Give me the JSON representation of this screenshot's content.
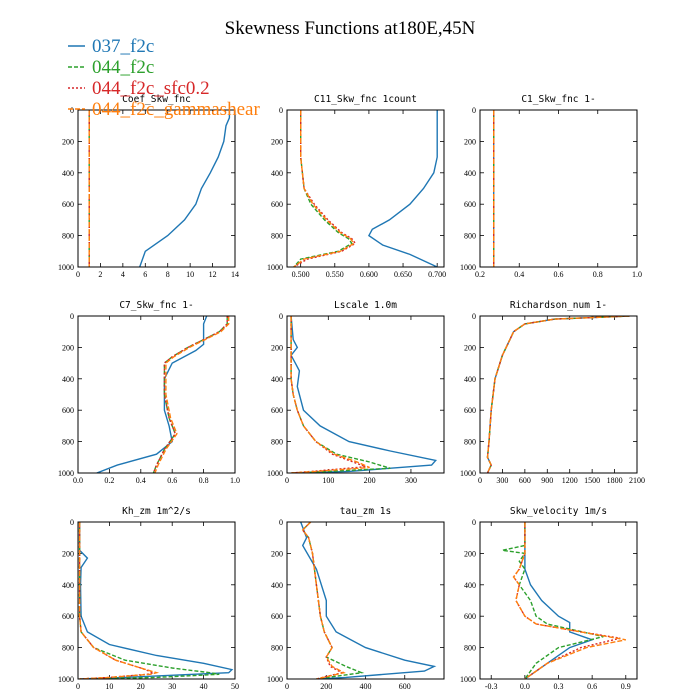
{
  "title": "Skewness Functions at180E,45N",
  "legend": [
    {
      "name": "037_f2c",
      "color": "#1f77b4"
    },
    {
      "name": "044_f2c",
      "color": "#2ca02c"
    },
    {
      "name": "044_f2c_sfc0.2",
      "color": "#d62728"
    },
    {
      "name": "044_f2c_gammashear",
      "color": "#ff7f0e"
    }
  ],
  "chart_data": [
    {
      "type": "line",
      "title": "Coef_Skw_fnc",
      "xlim": [
        0,
        14
      ],
      "ylim": [
        1000,
        0
      ],
      "xticks": [
        0,
        2,
        4,
        6,
        8,
        10,
        12,
        14
      ],
      "yticks": [
        0,
        200,
        400,
        600,
        800,
        1000
      ],
      "series": [
        {
          "x": [
            13.5,
            13.5,
            13.2,
            13.0,
            12.5,
            11.8,
            11.0,
            10.5,
            9.5,
            8.0,
            6.0,
            5.5
          ],
          "y": [
            0,
            50,
            100,
            200,
            300,
            400,
            500,
            600,
            700,
            800,
            900,
            1000
          ]
        },
        {
          "x": [
            1.0,
            1.0
          ],
          "y": [
            0,
            1000
          ]
        },
        {
          "x": [
            1.0,
            1.0
          ],
          "y": [
            0,
            1000
          ]
        },
        {
          "x": [
            1.0,
            1.0
          ],
          "y": [
            0,
            1000
          ]
        }
      ]
    },
    {
      "type": "line",
      "title": "C11_Skw_fnc   1count",
      "xlim": [
        0.48,
        0.71
      ],
      "ylim": [
        1000,
        0
      ],
      "xticks": [
        0.5,
        0.55,
        0.6,
        0.65,
        0.7
      ],
      "xticklabels": [
        "0.500",
        "0.550",
        "0.600",
        "0.650",
        "0.700"
      ],
      "yticks": [
        0,
        200,
        400,
        600,
        800,
        1000
      ],
      "series": [
        {
          "x": [
            0.7,
            0.7,
            0.7,
            0.695,
            0.68,
            0.66,
            0.63,
            0.605,
            0.6,
            0.62,
            0.66,
            0.7
          ],
          "y": [
            0,
            100,
            300,
            400,
            500,
            600,
            700,
            760,
            800,
            860,
            920,
            1000
          ]
        },
        {
          "x": [
            0.5,
            0.5,
            0.5,
            0.505,
            0.515,
            0.535,
            0.555,
            0.57,
            0.575,
            0.555,
            0.5,
            0.49
          ],
          "y": [
            0,
            100,
            300,
            500,
            600,
            700,
            780,
            820,
            850,
            900,
            950,
            1000
          ]
        },
        {
          "x": [
            0.5,
            0.5,
            0.5,
            0.505,
            0.52,
            0.54,
            0.56,
            0.575,
            0.58,
            0.56,
            0.51,
            0.49
          ],
          "y": [
            0,
            100,
            300,
            500,
            600,
            700,
            780,
            820,
            850,
            900,
            950,
            1000
          ]
        },
        {
          "x": [
            0.5,
            0.5,
            0.5,
            0.505,
            0.518,
            0.538,
            0.558,
            0.573,
            0.578,
            0.558,
            0.505,
            0.49
          ],
          "y": [
            0,
            100,
            300,
            500,
            600,
            700,
            780,
            820,
            850,
            900,
            950,
            1000
          ]
        }
      ]
    },
    {
      "type": "line",
      "title": "C1_Skw_fnc   1-",
      "xlim": [
        0.2,
        1.0
      ],
      "ylim": [
        1000,
        0
      ],
      "xticks": [
        0.2,
        0.4,
        0.6,
        0.8,
        1.0
      ],
      "xticklabels": [
        "0.2",
        "0.4",
        "0.6",
        "0.8",
        "1.0"
      ],
      "yticks": [
        0,
        200,
        400,
        600,
        800,
        1000
      ],
      "series": [
        {
          "x": [
            0.27,
            0.27
          ],
          "y": [
            0,
            1000
          ]
        },
        {
          "x": [
            0.27,
            0.27
          ],
          "y": [
            0,
            1000
          ]
        },
        {
          "x": [
            0.27,
            0.27
          ],
          "y": [
            0,
            1000
          ]
        },
        {
          "x": [
            0.27,
            0.27
          ],
          "y": [
            0,
            1000
          ]
        }
      ]
    },
    {
      "type": "line",
      "title": "C7_Skw_fnc   1-",
      "xlim": [
        0.0,
        1.0
      ],
      "ylim": [
        1000,
        0
      ],
      "xticks": [
        0.0,
        0.2,
        0.4,
        0.6,
        0.8,
        1.0
      ],
      "xticklabels": [
        "0.0",
        "0.2",
        "0.4",
        "0.6",
        "0.8",
        "1.0"
      ],
      "yticks": [
        0,
        200,
        400,
        600,
        800,
        1000
      ],
      "series": [
        {
          "x": [
            0.82,
            0.8,
            0.8,
            0.8,
            0.75,
            0.6,
            0.55,
            0.55,
            0.58,
            0.6,
            0.5,
            0.25,
            0.12
          ],
          "y": [
            0,
            50,
            150,
            180,
            220,
            300,
            400,
            600,
            700,
            800,
            880,
            950,
            1000
          ]
        },
        {
          "x": [
            0.95,
            0.95,
            0.9,
            0.8,
            0.7,
            0.6,
            0.55,
            0.55,
            0.58,
            0.62,
            0.55,
            0.5,
            0.48
          ],
          "y": [
            0,
            50,
            100,
            150,
            200,
            260,
            300,
            500,
            650,
            750,
            850,
            950,
            1000
          ]
        },
        {
          "x": [
            0.95,
            0.95,
            0.9,
            0.8,
            0.7,
            0.6,
            0.55,
            0.55,
            0.58,
            0.62,
            0.55,
            0.5,
            0.48
          ],
          "y": [
            0,
            50,
            100,
            150,
            200,
            260,
            300,
            500,
            650,
            750,
            850,
            950,
            1000
          ]
        },
        {
          "x": [
            0.96,
            0.96,
            0.91,
            0.81,
            0.71,
            0.61,
            0.56,
            0.56,
            0.59,
            0.63,
            0.56,
            0.51,
            0.49
          ],
          "y": [
            0,
            50,
            100,
            150,
            200,
            260,
            300,
            500,
            650,
            750,
            850,
            950,
            1000
          ]
        }
      ]
    },
    {
      "type": "line",
      "title": "Lscale   1.0m",
      "xlim": [
        0,
        380
      ],
      "ylim": [
        1000,
        0
      ],
      "xticks": [
        0,
        100,
        200,
        300
      ],
      "yticks": [
        0,
        200,
        400,
        600,
        800,
        1000
      ],
      "series": [
        {
          "x": [
            10,
            15,
            25,
            10,
            20,
            30,
            25,
            40,
            80,
            150,
            250,
            360,
            350,
            150,
            20
          ],
          "y": [
            0,
            150,
            200,
            250,
            300,
            350,
            450,
            600,
            700,
            800,
            860,
            920,
            950,
            990,
            1000
          ]
        },
        {
          "x": [
            10,
            10,
            10,
            15,
            25,
            40,
            70,
            120,
            200,
            250,
            100,
            10
          ],
          "y": [
            0,
            200,
            400,
            500,
            600,
            700,
            800,
            880,
            930,
            970,
            990,
            1000
          ]
        },
        {
          "x": [
            10,
            10,
            10,
            15,
            25,
            40,
            70,
            110,
            160,
            190,
            60,
            10
          ],
          "y": [
            0,
            200,
            400,
            500,
            600,
            700,
            800,
            880,
            930,
            960,
            990,
            1000
          ]
        },
        {
          "x": [
            10,
            10,
            10,
            15,
            25,
            40,
            70,
            115,
            170,
            200,
            70,
            10
          ],
          "y": [
            0,
            200,
            400,
            500,
            600,
            700,
            800,
            880,
            930,
            965,
            990,
            1000
          ]
        }
      ]
    },
    {
      "type": "line",
      "title": "Richardson_num   1-",
      "xlim": [
        0,
        2100
      ],
      "ylim": [
        1000,
        0
      ],
      "xticks": [
        0,
        300,
        600,
        900,
        1200,
        1500,
        1800,
        2100
      ],
      "yticks": [
        0,
        200,
        400,
        600,
        800,
        1000
      ],
      "series": [
        {
          "x": [
            2000,
            1000,
            600,
            450,
            400,
            300,
            200,
            150,
            120,
            100,
            150,
            100
          ],
          "y": [
            0,
            20,
            50,
            100,
            150,
            250,
            400,
            600,
            800,
            900,
            950,
            1000
          ]
        },
        {
          "x": [
            2000,
            1000,
            600,
            450,
            400,
            300,
            200,
            150,
            120,
            100,
            150,
            100
          ],
          "y": [
            0,
            20,
            50,
            100,
            150,
            250,
            400,
            600,
            800,
            900,
            950,
            1000
          ]
        },
        {
          "x": [
            2000,
            1000,
            600,
            450,
            400,
            300,
            200,
            150,
            120,
            100,
            150,
            100
          ],
          "y": [
            0,
            20,
            50,
            100,
            150,
            250,
            400,
            600,
            800,
            900,
            950,
            1000
          ]
        },
        {
          "x": [
            2000,
            1000,
            600,
            450,
            400,
            300,
            200,
            150,
            120,
            100,
            150,
            100
          ],
          "y": [
            0,
            20,
            50,
            100,
            150,
            250,
            400,
            600,
            800,
            900,
            950,
            1000
          ]
        }
      ]
    },
    {
      "type": "line",
      "title": "Kh_zm   1m^2/s",
      "xlim": [
        0,
        50
      ],
      "ylim": [
        1000,
        0
      ],
      "xticks": [
        0,
        10,
        20,
        30,
        40,
        50
      ],
      "yticks": [
        0,
        200,
        400,
        600,
        800,
        1000
      ],
      "series": [
        {
          "x": [
            0.5,
            0.5,
            3.0,
            1.0,
            0.8,
            1.0,
            3.0,
            10,
            25,
            40,
            49,
            48,
            15,
            0.5
          ],
          "y": [
            0,
            180,
            230,
            290,
            400,
            600,
            700,
            780,
            850,
            900,
            940,
            960,
            990,
            1000
          ]
        },
        {
          "x": [
            0.5,
            0.5,
            0.5,
            0.5,
            1.0,
            5.0,
            15,
            30,
            42,
            45,
            25,
            0.5
          ],
          "y": [
            0,
            200,
            400,
            600,
            700,
            800,
            880,
            930,
            960,
            970,
            990,
            1000
          ]
        },
        {
          "x": [
            0.5,
            0.5,
            0.5,
            0.5,
            1.0,
            5.0,
            12,
            20,
            24,
            22,
            10,
            0.5
          ],
          "y": [
            0,
            200,
            400,
            600,
            700,
            800,
            880,
            930,
            960,
            970,
            990,
            1000
          ]
        },
        {
          "x": [
            0.5,
            0.5,
            0.5,
            0.5,
            1.0,
            5.0,
            12,
            20,
            25,
            23,
            10,
            0.5
          ],
          "y": [
            0,
            200,
            400,
            600,
            700,
            800,
            880,
            930,
            960,
            970,
            990,
            1000
          ]
        }
      ]
    },
    {
      "type": "line",
      "title": "tau_zm   1s",
      "xlim": [
        0,
        800
      ],
      "ylim": [
        1000,
        0
      ],
      "xticks": [
        0,
        200,
        400,
        600
      ],
      "yticks": [
        0,
        200,
        400,
        600,
        800,
        1000
      ],
      "series": [
        {
          "x": [
            70,
            100,
            80,
            150,
            200,
            200,
            250,
            400,
            600,
            750,
            700,
            300,
            150
          ],
          "y": [
            0,
            100,
            150,
            300,
            500,
            600,
            700,
            800,
            880,
            920,
            950,
            990,
            1000
          ]
        },
        {
          "x": [
            120,
            80,
            110,
            130,
            150,
            170,
            190,
            230,
            200,
            300,
            380,
            150
          ],
          "y": [
            0,
            50,
            100,
            200,
            400,
            600,
            700,
            800,
            860,
            920,
            960,
            1000
          ]
        },
        {
          "x": [
            120,
            80,
            110,
            130,
            150,
            170,
            190,
            230,
            200,
            220,
            280,
            150
          ],
          "y": [
            0,
            50,
            100,
            200,
            400,
            600,
            700,
            800,
            860,
            920,
            960,
            1000
          ]
        },
        {
          "x": [
            120,
            80,
            110,
            130,
            150,
            170,
            190,
            230,
            200,
            230,
            290,
            150
          ],
          "y": [
            0,
            50,
            100,
            200,
            400,
            600,
            700,
            800,
            860,
            920,
            960,
            1000
          ]
        }
      ]
    },
    {
      "type": "line",
      "title": "Skw_velocity   1m/s",
      "xlim": [
        -0.4,
        1.0
      ],
      "ylim": [
        1000,
        0
      ],
      "xticks": [
        -0.3,
        0.0,
        0.3,
        0.6,
        0.9
      ],
      "xticklabels": [
        "-0.3",
        "0.0",
        "0.3",
        "0.6",
        "0.9"
      ],
      "yticks": [
        0,
        200,
        400,
        600,
        800,
        1000
      ],
      "series": [
        {
          "x": [
            0.0,
            0.0,
            0.0,
            0.05,
            0.15,
            0.3,
            0.4,
            0.4,
            0.6,
            0.4,
            0.2,
            0.0
          ],
          "y": [
            0,
            100,
            300,
            400,
            500,
            600,
            640,
            700,
            750,
            800,
            900,
            1000
          ]
        },
        {
          "x": [
            0.0,
            0.0,
            -0.2,
            0.0,
            -0.05,
            0.0,
            -0.05,
            0.05,
            0.1,
            0.2,
            0.7,
            0.3,
            0.1,
            0.0
          ],
          "y": [
            0,
            150,
            180,
            200,
            250,
            300,
            400,
            500,
            600,
            650,
            730,
            800,
            900,
            1000
          ]
        },
        {
          "x": [
            0.0,
            0.0,
            -0.05,
            -0.1,
            -0.05,
            -0.08,
            0.0,
            0.1,
            0.5,
            0.85,
            0.5,
            0.2,
            0.0
          ],
          "y": [
            0,
            200,
            300,
            350,
            400,
            500,
            600,
            650,
            700,
            740,
            800,
            900,
            1000
          ]
        },
        {
          "x": [
            0.0,
            0.0,
            -0.05,
            -0.1,
            -0.05,
            -0.08,
            0.0,
            0.1,
            0.5,
            0.9,
            0.55,
            0.2,
            0.0
          ],
          "y": [
            0,
            200,
            300,
            350,
            400,
            500,
            600,
            650,
            700,
            750,
            800,
            900,
            1000
          ]
        }
      ]
    }
  ]
}
